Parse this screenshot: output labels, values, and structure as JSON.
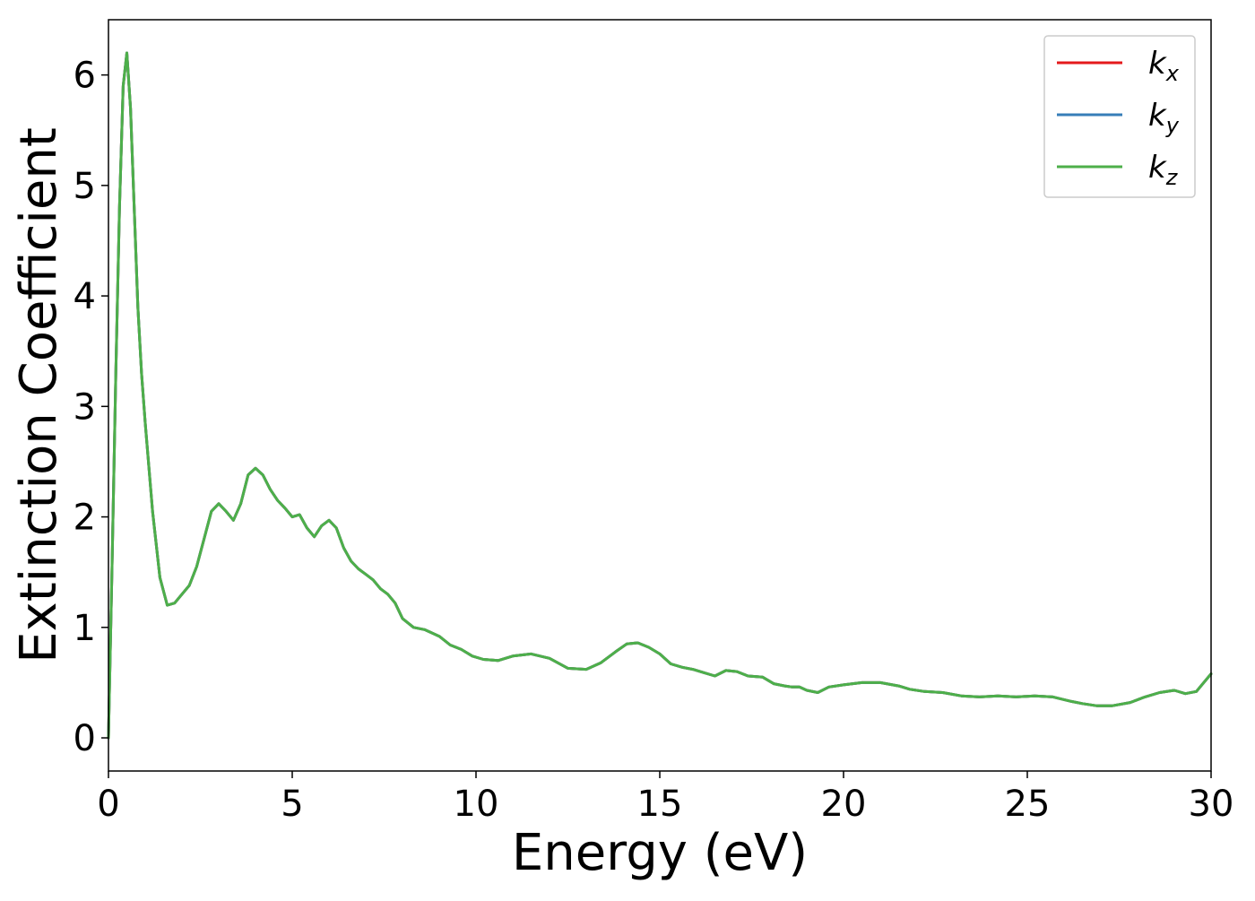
{
  "chart_data": {
    "type": "line",
    "title": "",
    "xlabel": "Energy (eV)",
    "ylabel": "Extinction Coefficient",
    "xlim": [
      0,
      30
    ],
    "ylim": [
      -0.3,
      6.5
    ],
    "xticks": [
      0,
      5,
      10,
      15,
      20,
      25,
      30
    ],
    "yticks": [
      0,
      1,
      2,
      3,
      4,
      5,
      6
    ],
    "grid": false,
    "legend_position": "top-right",
    "x": [
      0,
      0.1,
      0.2,
      0.3,
      0.4,
      0.5,
      0.6,
      0.7,
      0.8,
      0.9,
      1.0,
      1.2,
      1.4,
      1.6,
      1.8,
      2.0,
      2.2,
      2.4,
      2.6,
      2.8,
      3.0,
      3.2,
      3.4,
      3.6,
      3.8,
      4.0,
      4.2,
      4.4,
      4.6,
      4.8,
      5.0,
      5.2,
      5.4,
      5.6,
      5.8,
      6.0,
      6.2,
      6.4,
      6.6,
      6.8,
      7.0,
      7.2,
      7.4,
      7.6,
      7.8,
      8.0,
      8.3,
      8.6,
      9.0,
      9.3,
      9.6,
      9.9,
      10.2,
      10.6,
      11.0,
      11.5,
      12.0,
      12.5,
      13.0,
      13.4,
      13.8,
      14.1,
      14.4,
      14.7,
      15.0,
      15.3,
      15.6,
      15.9,
      16.2,
      16.5,
      16.8,
      17.1,
      17.4,
      17.8,
      18.1,
      18.4,
      18.6,
      18.8,
      19.0,
      19.3,
      19.6,
      20.0,
      20.5,
      21.0,
      21.5,
      21.8,
      22.2,
      22.7,
      23.2,
      23.7,
      24.2,
      24.7,
      25.2,
      25.7,
      26.2,
      26.5,
      26.9,
      27.3,
      27.8,
      28.2,
      28.6,
      29.0,
      29.3,
      29.6,
      29.8,
      30.0
    ],
    "series": [
      {
        "name": "k_x",
        "label_base": "k",
        "label_sub": "x",
        "color": "#e41a1c",
        "y": [
          0.0,
          1.6,
          3.3,
          4.8,
          5.9,
          6.2,
          5.7,
          4.8,
          3.9,
          3.3,
          2.85,
          2.05,
          1.45,
          1.2,
          1.22,
          1.3,
          1.38,
          1.55,
          1.8,
          2.05,
          2.12,
          2.05,
          1.97,
          2.12,
          2.38,
          2.44,
          2.38,
          2.25,
          2.15,
          2.08,
          2.0,
          2.02,
          1.9,
          1.82,
          1.92,
          1.97,
          1.9,
          1.72,
          1.6,
          1.53,
          1.48,
          1.43,
          1.35,
          1.3,
          1.22,
          1.08,
          1.0,
          0.98,
          0.92,
          0.84,
          0.8,
          0.74,
          0.71,
          0.7,
          0.74,
          0.76,
          0.72,
          0.63,
          0.62,
          0.68,
          0.78,
          0.85,
          0.86,
          0.82,
          0.76,
          0.67,
          0.64,
          0.62,
          0.59,
          0.56,
          0.61,
          0.6,
          0.56,
          0.55,
          0.49,
          0.47,
          0.46,
          0.46,
          0.43,
          0.41,
          0.46,
          0.48,
          0.5,
          0.5,
          0.47,
          0.44,
          0.42,
          0.41,
          0.38,
          0.37,
          0.38,
          0.37,
          0.38,
          0.37,
          0.33,
          0.31,
          0.29,
          0.29,
          0.32,
          0.37,
          0.41,
          0.43,
          0.4,
          0.42,
          0.5,
          0.58
        ]
      },
      {
        "name": "k_y",
        "label_base": "k",
        "label_sub": "y",
        "color": "#377eb8",
        "y": [
          0.0,
          1.6,
          3.3,
          4.8,
          5.9,
          6.2,
          5.7,
          4.8,
          3.9,
          3.3,
          2.85,
          2.05,
          1.45,
          1.2,
          1.22,
          1.3,
          1.38,
          1.55,
          1.8,
          2.05,
          2.12,
          2.05,
          1.97,
          2.12,
          2.38,
          2.44,
          2.38,
          2.25,
          2.15,
          2.08,
          2.0,
          2.02,
          1.9,
          1.82,
          1.92,
          1.97,
          1.9,
          1.72,
          1.6,
          1.53,
          1.48,
          1.43,
          1.35,
          1.3,
          1.22,
          1.08,
          1.0,
          0.98,
          0.92,
          0.84,
          0.8,
          0.74,
          0.71,
          0.7,
          0.74,
          0.76,
          0.72,
          0.63,
          0.62,
          0.68,
          0.78,
          0.85,
          0.86,
          0.82,
          0.76,
          0.67,
          0.64,
          0.62,
          0.59,
          0.56,
          0.61,
          0.6,
          0.56,
          0.55,
          0.49,
          0.47,
          0.46,
          0.46,
          0.43,
          0.41,
          0.46,
          0.48,
          0.5,
          0.5,
          0.47,
          0.44,
          0.42,
          0.41,
          0.38,
          0.37,
          0.38,
          0.37,
          0.38,
          0.37,
          0.33,
          0.31,
          0.29,
          0.29,
          0.32,
          0.37,
          0.41,
          0.43,
          0.4,
          0.42,
          0.5,
          0.58
        ]
      },
      {
        "name": "k_z",
        "label_base": "k",
        "label_sub": "z",
        "color": "#4daf4a",
        "y": [
          0.0,
          1.6,
          3.3,
          4.8,
          5.9,
          6.2,
          5.7,
          4.8,
          3.9,
          3.3,
          2.85,
          2.05,
          1.45,
          1.2,
          1.22,
          1.3,
          1.38,
          1.55,
          1.8,
          2.05,
          2.12,
          2.05,
          1.97,
          2.12,
          2.38,
          2.44,
          2.38,
          2.25,
          2.15,
          2.08,
          2.0,
          2.02,
          1.9,
          1.82,
          1.92,
          1.97,
          1.9,
          1.72,
          1.6,
          1.53,
          1.48,
          1.43,
          1.35,
          1.3,
          1.22,
          1.08,
          1.0,
          0.98,
          0.92,
          0.84,
          0.8,
          0.74,
          0.71,
          0.7,
          0.74,
          0.76,
          0.72,
          0.63,
          0.62,
          0.68,
          0.78,
          0.85,
          0.86,
          0.82,
          0.76,
          0.67,
          0.64,
          0.62,
          0.59,
          0.56,
          0.61,
          0.6,
          0.56,
          0.55,
          0.49,
          0.47,
          0.46,
          0.46,
          0.43,
          0.41,
          0.46,
          0.48,
          0.5,
          0.5,
          0.47,
          0.44,
          0.42,
          0.41,
          0.38,
          0.37,
          0.38,
          0.37,
          0.38,
          0.37,
          0.33,
          0.31,
          0.29,
          0.29,
          0.32,
          0.37,
          0.41,
          0.43,
          0.4,
          0.42,
          0.5,
          0.58
        ]
      }
    ]
  }
}
